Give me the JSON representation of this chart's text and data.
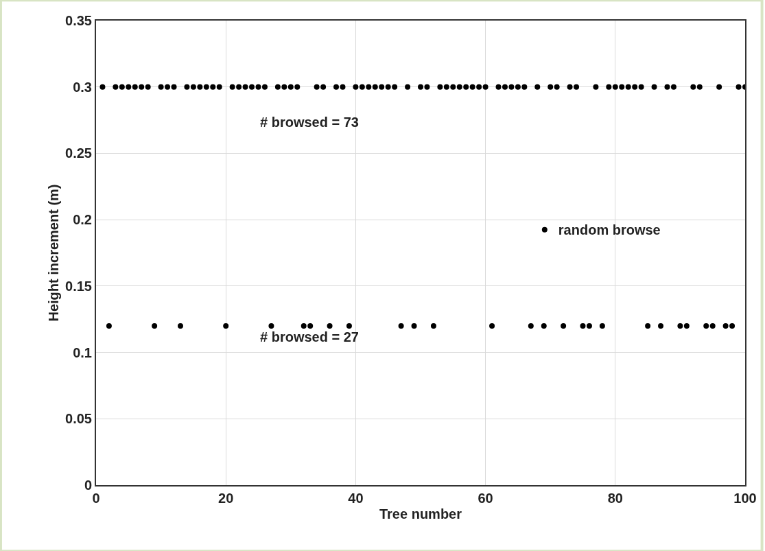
{
  "chart_data": {
    "type": "scatter",
    "xlabel": "Tree number",
    "ylabel": "Height increment (m)",
    "x": [
      1,
      2,
      3,
      4,
      5,
      6,
      7,
      8,
      9,
      10,
      11,
      12,
      13,
      14,
      15,
      16,
      17,
      18,
      19,
      20,
      21,
      22,
      23,
      24,
      25,
      26,
      27,
      28,
      29,
      30,
      31,
      32,
      33,
      34,
      35,
      36,
      37,
      38,
      39,
      40,
      41,
      42,
      43,
      44,
      45,
      46,
      47,
      48,
      49,
      50,
      51,
      52,
      53,
      54,
      55,
      56,
      57,
      58,
      59,
      60,
      61,
      62,
      63,
      64,
      65,
      66,
      67,
      68,
      69,
      70,
      71,
      72,
      73,
      74,
      75,
      76,
      77,
      78,
      79,
      80,
      81,
      82,
      83,
      84,
      85,
      86,
      87,
      88,
      89,
      90,
      91,
      92,
      93,
      94,
      95,
      96,
      97,
      98,
      99,
      100
    ],
    "series": [
      {
        "name": "random browse",
        "color": "#000000",
        "values": [
          0.3,
          0.12,
          0.3,
          0.3,
          0.3,
          0.3,
          0.3,
          0.3,
          0.12,
          0.3,
          0.3,
          0.3,
          0.12,
          0.3,
          0.3,
          0.3,
          0.3,
          0.3,
          0.3,
          0.12,
          0.3,
          0.3,
          0.3,
          0.3,
          0.3,
          0.3,
          0.12,
          0.3,
          0.3,
          0.3,
          0.3,
          0.12,
          0.12,
          0.3,
          0.3,
          0.12,
          0.3,
          0.3,
          0.12,
          0.3,
          0.3,
          0.3,
          0.3,
          0.3,
          0.3,
          0.3,
          0.12,
          0.3,
          0.12,
          0.3,
          0.3,
          0.12,
          0.3,
          0.3,
          0.3,
          0.3,
          0.3,
          0.3,
          0.3,
          0.3,
          0.12,
          0.3,
          0.3,
          0.3,
          0.3,
          0.3,
          0.12,
          0.3,
          0.12,
          0.3,
          0.3,
          0.12,
          0.3,
          0.3,
          0.12,
          0.12,
          0.3,
          0.12,
          0.3,
          0.3,
          0.3,
          0.3,
          0.3,
          0.3,
          0.12,
          0.3,
          0.12,
          0.3,
          0.3,
          0.12,
          0.12,
          0.3,
          0.3,
          0.12,
          0.12,
          0.3,
          0.12,
          0.12,
          0.3,
          0.3
        ]
      }
    ],
    "xlim": [
      0,
      100
    ],
    "xticks": [
      0,
      20,
      40,
      60,
      80,
      100
    ],
    "ylim": [
      0,
      0.35
    ],
    "yticks": [
      0,
      0.05,
      0.1,
      0.15,
      0.2,
      0.25,
      0.3,
      0.35
    ],
    "annotations": [
      "# browsed = 73",
      "# browsed = 27"
    ],
    "grid": true,
    "legend": "right",
    "marker": "circle"
  }
}
